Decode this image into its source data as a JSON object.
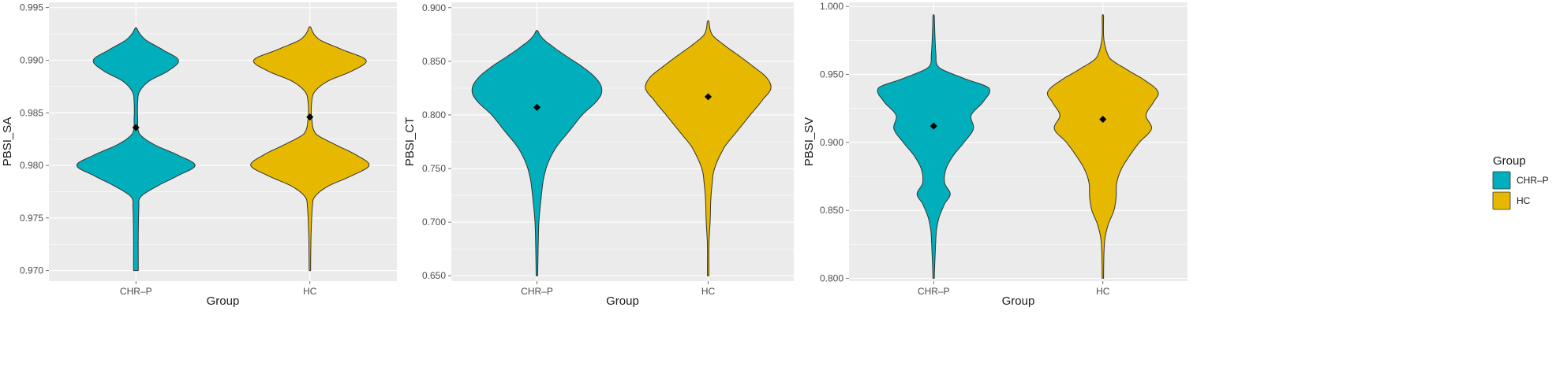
{
  "colors": {
    "CHR-P": "#00AFBB",
    "HC": "#E7B800",
    "panel": "#EBEBEB",
    "grid": "#FFFFFF"
  },
  "legend": {
    "title": "Group",
    "items": [
      {
        "label": "CHR–P",
        "color": "#00AFBB"
      },
      {
        "label": "HC",
        "color": "#E7B800"
      }
    ]
  },
  "chart_data": [
    {
      "type": "violin",
      "xlabel": "Group",
      "ylabel": "PBSI_SA",
      "categories": [
        "CHR–P",
        "HC"
      ],
      "ylim": [
        0.969,
        0.9955
      ],
      "yticks": [
        0.97,
        0.975,
        0.98,
        0.985,
        0.99,
        0.995
      ],
      "yticklabels": [
        "0.970",
        "0.975",
        "0.980",
        "0.985",
        "0.990",
        "0.995"
      ],
      "grid": true,
      "series": [
        {
          "category": "CHR–P",
          "min": 0.97,
          "max": 0.9931,
          "mean": 0.9836,
          "density": [
            [
              0.97,
              0.04
            ],
            [
              0.9735,
              0.04
            ],
            [
              0.976,
              0.05
            ],
            [
              0.977,
              0.08
            ],
            [
              0.978,
              0.35
            ],
            [
              0.979,
              0.7
            ],
            [
              0.98,
              1.0
            ],
            [
              0.981,
              0.7
            ],
            [
              0.982,
              0.3
            ],
            [
              0.983,
              0.06
            ],
            [
              0.9845,
              0.03
            ],
            [
              0.986,
              0.03
            ],
            [
              0.987,
              0.06
            ],
            [
              0.988,
              0.22
            ],
            [
              0.989,
              0.55
            ],
            [
              0.99,
              0.72
            ],
            [
              0.991,
              0.45
            ],
            [
              0.992,
              0.15
            ],
            [
              0.9931,
              0.0
            ]
          ]
        },
        {
          "category": "HC",
          "min": 0.97,
          "max": 0.9932,
          "mean": 0.9846,
          "density": [
            [
              0.97,
              0.0
            ],
            [
              0.9735,
              0.02
            ],
            [
              0.976,
              0.04
            ],
            [
              0.977,
              0.08
            ],
            [
              0.978,
              0.3
            ],
            [
              0.979,
              0.7
            ],
            [
              0.98,
              1.0
            ],
            [
              0.981,
              0.78
            ],
            [
              0.982,
              0.42
            ],
            [
              0.983,
              0.1
            ],
            [
              0.9845,
              0.03
            ],
            [
              0.986,
              0.03
            ],
            [
              0.987,
              0.08
            ],
            [
              0.988,
              0.3
            ],
            [
              0.989,
              0.72
            ],
            [
              0.99,
              0.95
            ],
            [
              0.991,
              0.55
            ],
            [
              0.992,
              0.15
            ],
            [
              0.9932,
              0.0
            ]
          ]
        }
      ]
    },
    {
      "type": "violin",
      "xlabel": "Group",
      "ylabel": "PBSI_CT",
      "categories": [
        "CHR–P",
        "HC"
      ],
      "ylim": [
        0.645,
        0.905
      ],
      "yticks": [
        0.65,
        0.7,
        0.75,
        0.8,
        0.85,
        0.9
      ],
      "yticklabels": [
        "0.650",
        "0.700",
        "0.750",
        "0.800",
        "0.850",
        "0.900"
      ],
      "grid": true,
      "series": [
        {
          "category": "CHR–P",
          "min": 0.65,
          "max": 0.879,
          "mean": 0.807,
          "density": [
            [
              0.65,
              0.01
            ],
            [
              0.68,
              0.02
            ],
            [
              0.7,
              0.03
            ],
            [
              0.72,
              0.06
            ],
            [
              0.74,
              0.1
            ],
            [
              0.755,
              0.17
            ],
            [
              0.77,
              0.3
            ],
            [
              0.785,
              0.5
            ],
            [
              0.8,
              0.7
            ],
            [
              0.815,
              0.95
            ],
            [
              0.825,
              1.0
            ],
            [
              0.835,
              0.9
            ],
            [
              0.845,
              0.7
            ],
            [
              0.855,
              0.45
            ],
            [
              0.865,
              0.22
            ],
            [
              0.872,
              0.08
            ],
            [
              0.879,
              0.0
            ]
          ]
        },
        {
          "category": "HC",
          "min": 0.65,
          "max": 0.888,
          "mean": 0.817,
          "density": [
            [
              0.65,
              0.0
            ],
            [
              0.68,
              0.01
            ],
            [
              0.7,
              0.03
            ],
            [
              0.72,
              0.04
            ],
            [
              0.735,
              0.06
            ],
            [
              0.75,
              0.1
            ],
            [
              0.77,
              0.25
            ],
            [
              0.785,
              0.45
            ],
            [
              0.8,
              0.65
            ],
            [
              0.815,
              0.85
            ],
            [
              0.825,
              0.97
            ],
            [
              0.835,
              0.9
            ],
            [
              0.845,
              0.7
            ],
            [
              0.855,
              0.48
            ],
            [
              0.865,
              0.25
            ],
            [
              0.875,
              0.06
            ],
            [
              0.888,
              0.0
            ]
          ]
        }
      ]
    },
    {
      "type": "violin",
      "xlabel": "Group",
      "ylabel": "PBSI_SV",
      "categories": [
        "CHR–P",
        "HC"
      ],
      "ylim": [
        0.798,
        1.003
      ],
      "yticks": [
        0.8,
        0.85,
        0.9,
        0.95,
        1.0
      ],
      "yticklabels": [
        "0.800",
        "0.850",
        "0.900",
        "0.950",
        "1.000"
      ],
      "grid": true,
      "series": [
        {
          "category": "CHR–P",
          "min": 0.8,
          "max": 0.994,
          "mean": 0.912,
          "density": [
            [
              0.8,
              0.01
            ],
            [
              0.82,
              0.03
            ],
            [
              0.835,
              0.05
            ],
            [
              0.845,
              0.1
            ],
            [
              0.855,
              0.2
            ],
            [
              0.862,
              0.3
            ],
            [
              0.87,
              0.2
            ],
            [
              0.88,
              0.22
            ],
            [
              0.89,
              0.35
            ],
            [
              0.9,
              0.55
            ],
            [
              0.91,
              0.72
            ],
            [
              0.92,
              0.68
            ],
            [
              0.93,
              0.9
            ],
            [
              0.94,
              1.0
            ],
            [
              0.947,
              0.55
            ],
            [
              0.955,
              0.1
            ],
            [
              0.965,
              0.04
            ],
            [
              0.994,
              0.0
            ]
          ]
        },
        {
          "category": "HC",
          "min": 0.8,
          "max": 0.994,
          "mean": 0.917,
          "density": [
            [
              0.8,
              0.0
            ],
            [
              0.82,
              0.02
            ],
            [
              0.83,
              0.04
            ],
            [
              0.84,
              0.1
            ],
            [
              0.85,
              0.2
            ],
            [
              0.86,
              0.24
            ],
            [
              0.87,
              0.25
            ],
            [
              0.88,
              0.33
            ],
            [
              0.89,
              0.48
            ],
            [
              0.9,
              0.66
            ],
            [
              0.91,
              0.88
            ],
            [
              0.92,
              0.78
            ],
            [
              0.93,
              0.92
            ],
            [
              0.937,
              1.0
            ],
            [
              0.945,
              0.78
            ],
            [
              0.955,
              0.38
            ],
            [
              0.962,
              0.12
            ],
            [
              0.975,
              0.02
            ],
            [
              0.994,
              0.0
            ]
          ]
        }
      ]
    }
  ]
}
